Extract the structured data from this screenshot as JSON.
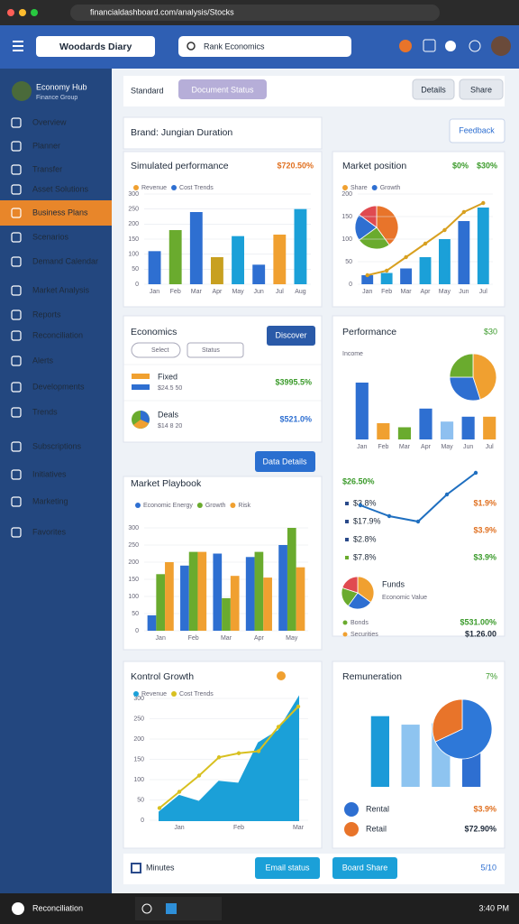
{
  "browser": {
    "url": "financialdashboard.com/analysis/Stocks"
  },
  "header": {
    "title": "Woodards Diary",
    "search": "Rank Economics"
  },
  "sidebar": {
    "user_name": "Economy Hub",
    "user_role": "Finance Group",
    "active_item": 4,
    "items": [
      "Overview",
      "Planner",
      "Transfer",
      "Asset Solutions",
      "Business Plans",
      "Scenarios",
      "Demand Calendar",
      "Market Analysis",
      "Reports",
      "Reconciliation",
      "Alerts",
      "Developments",
      "Trends",
      "Subscriptions",
      "Initiatives",
      "Marketing",
      "Favorites"
    ]
  },
  "toolbar": {
    "view": "Standard",
    "status": "Document Status",
    "details": "Details",
    "share": "Share"
  },
  "summary": {
    "title": "Brand: Jungian Duration",
    "button": "Feedback"
  },
  "sales": {
    "value": "$720.50%"
  },
  "market": {
    "title": "Market position",
    "value_a": "$0%",
    "value_b": "$30%"
  },
  "economics": {
    "title": "Economics",
    "button": "Discover",
    "filter_a": "Select",
    "filter_b": "Status",
    "rows": [
      {
        "name": "Fixed",
        "sub": "$24.5 50",
        "value": "$3995.5%"
      },
      {
        "name": "Deals",
        "sub": "$14 8 20",
        "value": "$521.0%"
      }
    ]
  },
  "performance": {
    "title": "Performance",
    "corner": "$30",
    "sub": "Income",
    "left": [
      "$26.50%",
      "$3.8%",
      "$17.9%",
      "$2.8%",
      "$7.8%"
    ],
    "right": [
      "$1.9%",
      "$3.9%",
      "$3.9%"
    ],
    "pie_title": "Funds",
    "pie_sub": "Economic Value",
    "rows": [
      [
        "Bonds",
        "$531.00%"
      ],
      [
        "Securities",
        "$1.26.00"
      ]
    ]
  },
  "playbook": {
    "button": "Data Details"
  },
  "remuneration": {
    "corner": "7%",
    "rows": [
      [
        "Rental",
        "$3.9%"
      ],
      [
        "Retail",
        "$72.90%"
      ]
    ]
  },
  "footer": {
    "check": "Minutes",
    "email": "Email status",
    "share": "Board Share",
    "page": "5/10"
  },
  "taskbar": {
    "left": "Reconciliation",
    "right": "3:40 PM"
  },
  "chart_data": [
    {
      "type": "bar",
      "title": "Simulated performance",
      "categories": [
        "Jan",
        "Feb",
        "Mar",
        "Apr",
        "May",
        "Jun",
        "Jul",
        "Aug"
      ],
      "values": [
        110,
        180,
        240,
        90,
        160,
        65,
        165,
        250
      ],
      "colors": [
        "#2e6fd1",
        "#6aab2e",
        "#2e6fd1",
        "#c8a020",
        "#1ba0d8",
        "#2e6fd1",
        "#f0a030",
        "#1ba0d8"
      ],
      "ylim": [
        0,
        300
      ],
      "yticks": [
        0,
        50,
        100,
        150,
        200,
        250,
        300
      ],
      "legend": [
        {
          "name": "Revenue",
          "color": "#f0a030"
        },
        {
          "name": "Cost Trends",
          "color": "#2e6fd1"
        }
      ]
    },
    {
      "type": "pie",
      "values": [
        40,
        25,
        20,
        15
      ],
      "colors": [
        "#e8742a",
        "#6aab2e",
        "#2e6fd1",
        "#e04a50"
      ]
    },
    {
      "type": "bar",
      "categories": [
        "Jan",
        "Feb",
        "Mar",
        "Apr",
        "May",
        "Jun",
        "Jul"
      ],
      "values": [
        20,
        25,
        35,
        60,
        100,
        140,
        170
      ],
      "colors": [
        "#2e6fd1",
        "#1ba0d8",
        "#2e6fd1",
        "#1ba0d8",
        "#1ba0d8",
        "#2e6fd1",
        "#1ba0d8"
      ],
      "ylim": [
        0,
        200
      ],
      "yticks": [
        0,
        50,
        100,
        150,
        200
      ],
      "legend": [
        {
          "name": "Share",
          "color": "#f0a030"
        },
        {
          "name": "Growth",
          "color": "#2e6fd1"
        }
      ]
    },
    {
      "type": "line",
      "values": [
        20,
        30,
        60,
        90,
        120,
        160,
        180
      ],
      "color": "#d8a020",
      "ylim": [
        0,
        200
      ]
    },
    {
      "type": "bar",
      "categories": [
        "Jan",
        "Feb",
        "Mar",
        "Apr",
        "May",
        "Jun",
        "Jul"
      ],
      "values": [
        70,
        20,
        15,
        38,
        22,
        28,
        28
      ],
      "colors": [
        "#2e6fd1",
        "#f0a030",
        "#6aab2e",
        "#2e6fd1",
        "#8ec0f0",
        "#2e6fd1",
        "#f0a030"
      ],
      "ylim": [
        0,
        80
      ]
    },
    {
      "type": "line",
      "values": [
        30,
        20,
        15,
        40,
        60
      ],
      "color": "#1f6fc0",
      "ylim": [
        0,
        70
      ]
    },
    {
      "type": "pie",
      "values": [
        35,
        25,
        20,
        20
      ],
      "colors": [
        "#f0a030",
        "#2e6fd1",
        "#6aab2e",
        "#e04a50"
      ]
    },
    {
      "type": "pie",
      "values": [
        45,
        30,
        25
      ],
      "colors": [
        "#f0a030",
        "#2e6fd1",
        "#6aab2e"
      ]
    },
    {
      "type": "group",
      "title": "Market Playbook",
      "categories": [
        "Jan",
        "Feb",
        "Mar",
        "Apr",
        "May"
      ],
      "series": [
        {
          "name": "Economic Energy",
          "color": "#2e6fd1",
          "values": [
            45,
            190,
            225,
            215,
            250
          ]
        },
        {
          "name": "Growth",
          "color": "#6aab2e",
          "values": [
            165,
            230,
            95,
            230,
            300
          ]
        },
        {
          "name": "Risk",
          "color": "#f0a030",
          "values": [
            200,
            230,
            160,
            155,
            185
          ]
        }
      ],
      "ylim": [
        0,
        300
      ],
      "yticks": [
        0,
        50,
        100,
        150,
        200,
        250,
        300
      ]
    },
    {
      "type": "area",
      "title": "Kontrol Growth",
      "categories": [
        null,
        "Jan",
        null,
        null,
        "Feb",
        null,
        null,
        "Mar"
      ],
      "series": [
        {
          "name": "Revenue",
          "color": "#1ba0d8",
          "style": "area",
          "values": [
            20,
            60,
            45,
            95,
            90,
            190,
            220,
            300
          ]
        },
        {
          "name": "Cost Trends",
          "color": "#d8c020",
          "style": "line",
          "values": [
            30,
            70,
            110,
            155,
            165,
            170,
            230,
            280
          ]
        }
      ],
      "ylim": [
        0,
        320
      ],
      "yticks": [
        0,
        50,
        100,
        150,
        200,
        250,
        300
      ]
    },
    {
      "type": "bar",
      "title": "Remuneration",
      "values": [
        100,
        88,
        90,
        62
      ],
      "colors": [
        "#1b9ad8",
        "#8ec4f0",
        "#8ec4f0",
        "#2e6fd1"
      ],
      "ylim": [
        0,
        120
      ]
    },
    {
      "type": "pie",
      "values": [
        68,
        32
      ],
      "colors": [
        "#2e78d8",
        "#e8742a"
      ]
    }
  ]
}
